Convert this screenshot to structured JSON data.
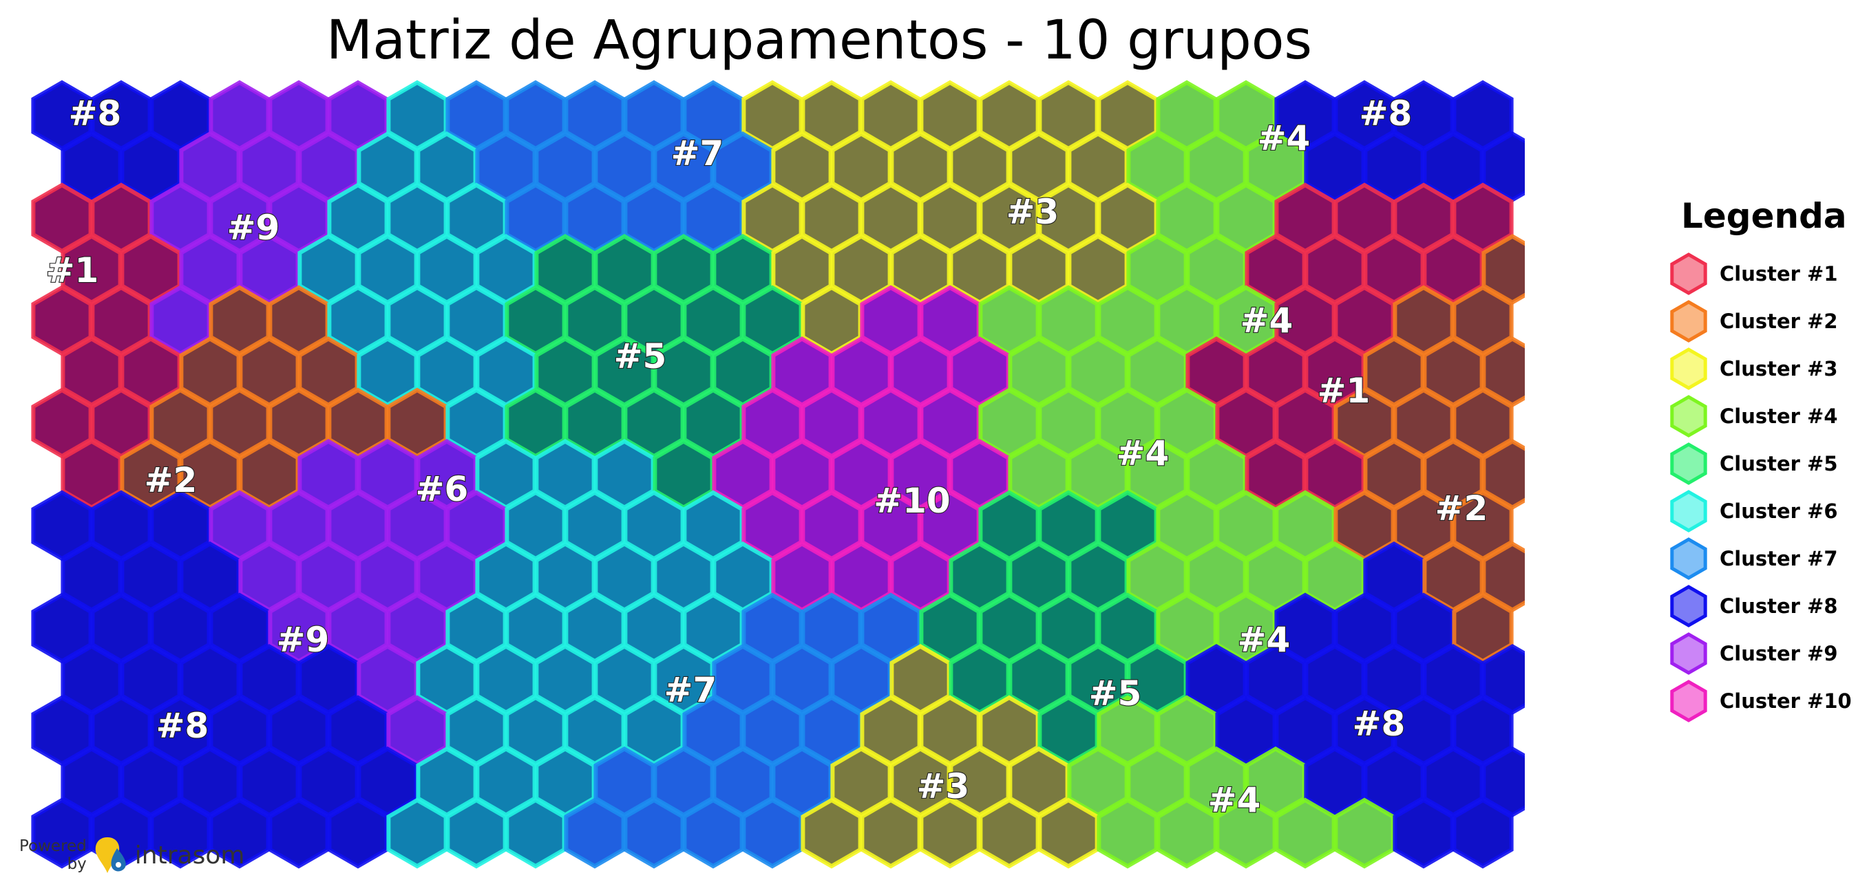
{
  "title": "Matriz de Agrupamentos - 10 grupos",
  "legend": {
    "title": "Legenda",
    "items": [
      {
        "label": "Cluster #1",
        "color": "#f0304f"
      },
      {
        "label": "Cluster #2",
        "color": "#f57c1f"
      },
      {
        "label": "Cluster #3",
        "color": "#f4f520"
      },
      {
        "label": "Cluster #4",
        "color": "#7ef520"
      },
      {
        "label": "Cluster #5",
        "color": "#23ef6c"
      },
      {
        "label": "Cluster #6",
        "color": "#22f2e2"
      },
      {
        "label": "Cluster #7",
        "color": "#1c8cf0"
      },
      {
        "label": "Cluster #8",
        "color": "#1010ee"
      },
      {
        "label": "Cluster #9",
        "color": "#a020f0"
      },
      {
        "label": "Cluster #10",
        "color": "#f020c0"
      }
    ]
  },
  "branding": {
    "powered": "Powered",
    "by": "by",
    "name": "intrasom"
  },
  "chart_data": {
    "type": "heatmap",
    "subtype": "hexagonal self-organizing map cluster matrix",
    "title": "Matriz de Agrupamentos - 10 grupos",
    "n_clusters": 10,
    "grid": {
      "columns": 25,
      "rows": 15,
      "cell_shape": "hexagon"
    },
    "legend_position": "right",
    "cluster_labels": [
      {
        "text": "#8",
        "cluster": 8
      },
      {
        "text": "#8",
        "cluster": 8
      },
      {
        "text": "#7",
        "cluster": 7
      },
      {
        "text": "#4",
        "cluster": 4
      },
      {
        "text": "#9",
        "cluster": 9
      },
      {
        "text": "#3",
        "cluster": 3
      },
      {
        "text": "#1",
        "cluster": 1
      },
      {
        "text": "#4",
        "cluster": 4
      },
      {
        "text": "#5",
        "cluster": 5
      },
      {
        "text": "#1",
        "cluster": 1
      },
      {
        "text": "#2",
        "cluster": 2
      },
      {
        "text": "#6",
        "cluster": 6
      },
      {
        "text": "#4",
        "cluster": 4
      },
      {
        "text": "#10",
        "cluster": 10
      },
      {
        "text": "#2",
        "cluster": 2
      },
      {
        "text": "#9",
        "cluster": 9
      },
      {
        "text": "#4",
        "cluster": 4
      },
      {
        "text": "#7",
        "cluster": 7
      },
      {
        "text": "#5",
        "cluster": 5
      },
      {
        "text": "#8",
        "cluster": 8
      },
      {
        "text": "#8",
        "cluster": 8
      },
      {
        "text": "#3",
        "cluster": 3
      },
      {
        "text": "#4",
        "cluster": 4
      }
    ]
  }
}
